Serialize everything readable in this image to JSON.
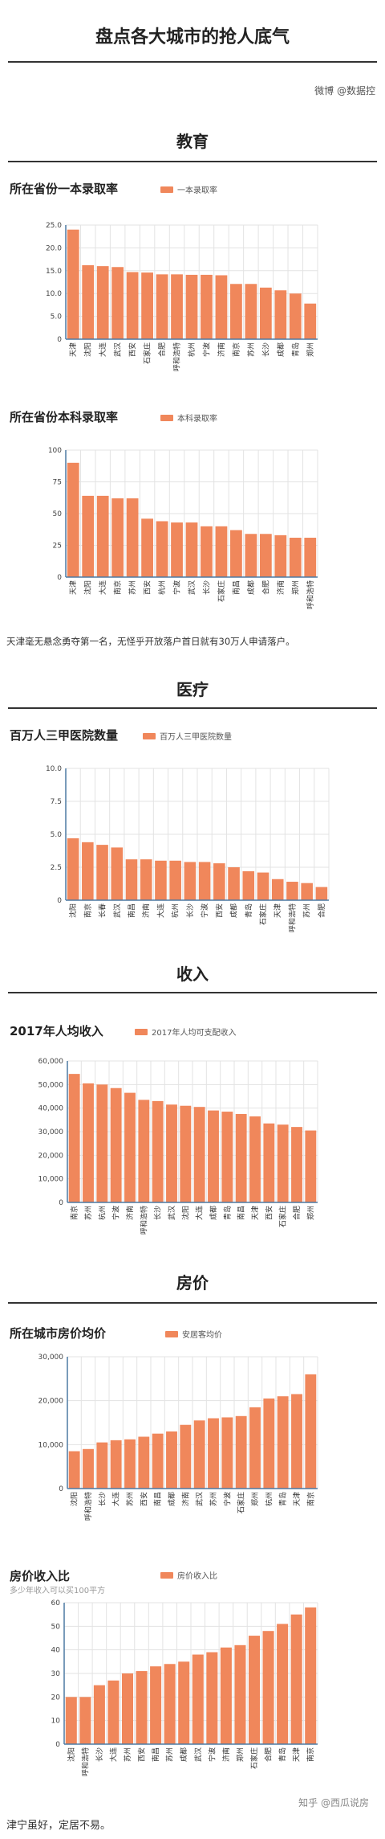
{
  "header": {
    "title": "盘点各大城市的抢人底气",
    "source": "微博 @数据控"
  },
  "sections": {
    "education": "教育",
    "medical": "医疗",
    "income": "收入",
    "housing": "房价"
  },
  "notes": {
    "education": "天津毫无悬念勇夺第一名，无怪乎开放落户首日就有30万人申请落户。",
    "footer": "津宁虽好，定居不易。",
    "watermark": "知乎 @西瓜说房"
  },
  "colors": {
    "bar": "#f0875b",
    "axis": "#4d7aa3",
    "grid": "#e3e3e3"
  },
  "chart_data": [
    {
      "id": "tier1",
      "type": "bar",
      "title": "所在省份一本录取率",
      "legend": "一本录取率",
      "ylim": [
        0,
        25
      ],
      "yticks": [
        0,
        5.0,
        10.0,
        15.0,
        20.0,
        25.0
      ],
      "ytick_labels": [
        "0",
        "5.0",
        "10.0",
        "15.0",
        "20.0",
        "25.0"
      ],
      "categories": [
        "天津",
        "沈阳",
        "大连",
        "武汉",
        "西安",
        "石家庄",
        "合肥",
        "呼和浩特",
        "杭州",
        "宁波",
        "济南",
        "南京",
        "苏州",
        "长沙",
        "成都",
        "青岛",
        "郑州"
      ],
      "values": [
        24.0,
        16.2,
        16.0,
        15.8,
        14.7,
        14.6,
        14.2,
        14.2,
        14.1,
        14.1,
        14.0,
        12.1,
        12.1,
        11.3,
        10.7,
        10.0,
        7.8
      ]
    },
    {
      "id": "undergrad",
      "type": "bar",
      "title": "所在省份本科录取率",
      "legend": "本科录取率",
      "ylim": [
        0,
        100
      ],
      "yticks": [
        0,
        25,
        50,
        75,
        100
      ],
      "ytick_labels": [
        "0",
        "25",
        "50",
        "75",
        "100"
      ],
      "categories": [
        "天津",
        "沈阳",
        "大连",
        "南京",
        "苏州",
        "西安",
        "杭州",
        "宁波",
        "武汉",
        "长沙",
        "石家庄",
        "南昌",
        "成都",
        "合肥",
        "济南",
        "郑州",
        "呼和浩特"
      ],
      "values": [
        90,
        64,
        64,
        62,
        62,
        46,
        44,
        43,
        43,
        40,
        40,
        37,
        34,
        34,
        33,
        31,
        31
      ]
    },
    {
      "id": "hospitals",
      "type": "bar",
      "title": "百万人三甲医院数量",
      "legend": "百万人三甲医院数量",
      "ylim": [
        0,
        10
      ],
      "yticks": [
        0,
        2.5,
        5.0,
        7.5,
        10.0
      ],
      "ytick_labels": [
        "0",
        "2.5",
        "5.0",
        "7.5",
        "10.0"
      ],
      "categories": [
        "沈阳",
        "南京",
        "长春",
        "武汉",
        "南昌",
        "济南",
        "大连",
        "杭州",
        "长沙",
        "宁波",
        "西安",
        "成都",
        "青岛",
        "石家庄",
        "天津",
        "呼和浩特",
        "苏州",
        "合肥"
      ],
      "values": [
        4.7,
        4.4,
        4.2,
        4.0,
        3.1,
        3.1,
        3.0,
        3.0,
        2.9,
        2.9,
        2.8,
        2.5,
        2.2,
        2.1,
        1.6,
        1.4,
        1.3,
        1.0
      ]
    },
    {
      "id": "income",
      "type": "bar",
      "title": "2017年人均收入",
      "legend": "2017年人均可支配收入",
      "ylim": [
        0,
        60000
      ],
      "yticks": [
        0,
        10000,
        20000,
        30000,
        40000,
        50000,
        60000
      ],
      "ytick_labels": [
        "0",
        "10,000",
        "20,000",
        "30,000",
        "40,000",
        "50,000",
        "60,000"
      ],
      "categories": [
        "南京",
        "苏州",
        "杭州",
        "宁波",
        "济南",
        "呼和浩特",
        "长沙",
        "武汉",
        "沈阳",
        "大连",
        "成都",
        "青岛",
        "南昌",
        "天津",
        "西安",
        "石家庄",
        "合肥",
        "郑州"
      ],
      "values": [
        54500,
        50500,
        50000,
        48500,
        46500,
        43500,
        43000,
        41500,
        41000,
        40500,
        39000,
        38500,
        37500,
        36500,
        33500,
        33000,
        32000,
        30500
      ]
    },
    {
      "id": "house_price",
      "type": "bar",
      "title": "所在城市房价均价",
      "legend": "安居客均价",
      "ylim": [
        0,
        30000
      ],
      "yticks": [
        0,
        10000,
        20000,
        30000
      ],
      "ytick_labels": [
        "0",
        "10,000",
        "20,000",
        "30,000"
      ],
      "categories": [
        "沈阳",
        "呼和浩特",
        "长沙",
        "大连",
        "苏州",
        "西安",
        "南昌",
        "成都",
        "济南",
        "武汉",
        "苏州",
        "宁波",
        "石家庄",
        "郑州",
        "杭州",
        "青岛",
        "天津",
        "南京"
      ],
      "values": [
        8500,
        9000,
        10500,
        11000,
        11200,
        11800,
        12500,
        13000,
        14500,
        15500,
        16000,
        16200,
        16500,
        18500,
        20500,
        21000,
        21500,
        26000
      ]
    },
    {
      "id": "price_income",
      "type": "bar",
      "title": "房价收入比",
      "subtitle": "多少年收入可以买100平方",
      "legend": "房价收入比",
      "ylim": [
        0,
        60
      ],
      "yticks": [
        0,
        10,
        20,
        30,
        40,
        50,
        60
      ],
      "ytick_labels": [
        "0",
        "10",
        "20",
        "30",
        "40",
        "50",
        "60"
      ],
      "categories": [
        "沈阳",
        "呼和浩特",
        "长沙",
        "大连",
        "苏州",
        "西安",
        "南昌",
        "苏州",
        "成都",
        "武汉",
        "宁波",
        "济南",
        "郑州",
        "石家庄",
        "合肥",
        "青岛",
        "天津",
        "南京"
      ],
      "values": [
        20,
        20,
        25,
        27,
        30,
        31,
        33,
        34,
        35,
        38,
        39,
        41,
        42,
        46,
        48,
        51,
        55,
        58
      ]
    }
  ]
}
